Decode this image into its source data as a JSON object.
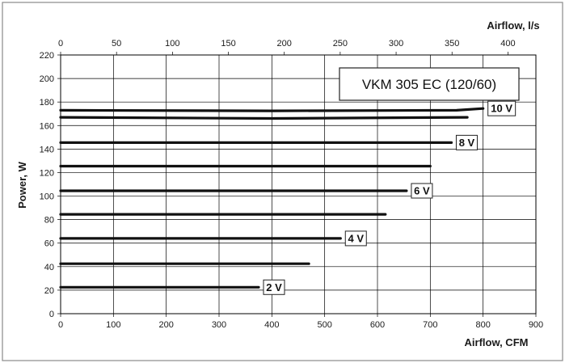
{
  "chart_data": {
    "type": "line",
    "title": "VKM 305 EC (120/60)",
    "xlabel": "Airflow, CFM",
    "ylabel": "Power, W",
    "x2label": "Airflow, l/s",
    "xlim": [
      0,
      900
    ],
    "ylim": [
      0,
      220
    ],
    "x2lim": [
      0,
      425
    ],
    "xticks": [
      0,
      100,
      200,
      300,
      400,
      500,
      600,
      700,
      800,
      900
    ],
    "yticks": [
      0,
      20,
      40,
      60,
      80,
      100,
      120,
      140,
      160,
      180,
      200,
      220
    ],
    "x2ticks": [
      0,
      50,
      100,
      150,
      200,
      250,
      300,
      350,
      400
    ],
    "grid": true,
    "series": [
      {
        "name": "2 V",
        "labeled": true,
        "points": [
          [
            0,
            22.5
          ],
          [
            375,
            22.5
          ]
        ]
      },
      {
        "name": "",
        "labeled": false,
        "points": [
          [
            0,
            42.5
          ],
          [
            470,
            42.5
          ]
        ]
      },
      {
        "name": "4 V",
        "labeled": true,
        "points": [
          [
            0,
            64
          ],
          [
            530,
            64
          ]
        ]
      },
      {
        "name": "",
        "labeled": false,
        "points": [
          [
            0,
            84.5
          ],
          [
            615,
            84.5
          ]
        ]
      },
      {
        "name": "6 V",
        "labeled": true,
        "points": [
          [
            0,
            104.5
          ],
          [
            655,
            104.5
          ]
        ]
      },
      {
        "name": "",
        "labeled": false,
        "points": [
          [
            0,
            125.5
          ],
          [
            700,
            125.5
          ]
        ]
      },
      {
        "name": "8 V",
        "labeled": true,
        "points": [
          [
            0,
            145.5
          ],
          [
            740,
            145.5
          ]
        ]
      },
      {
        "name": "",
        "labeled": false,
        "points": [
          [
            0,
            167
          ],
          [
            400,
            166
          ],
          [
            770,
            167
          ]
        ]
      },
      {
        "name": "10 V",
        "labeled": true,
        "points": [
          [
            0,
            173
          ],
          [
            400,
            172.5
          ],
          [
            750,
            173
          ],
          [
            800,
            174.5
          ]
        ]
      }
    ]
  }
}
